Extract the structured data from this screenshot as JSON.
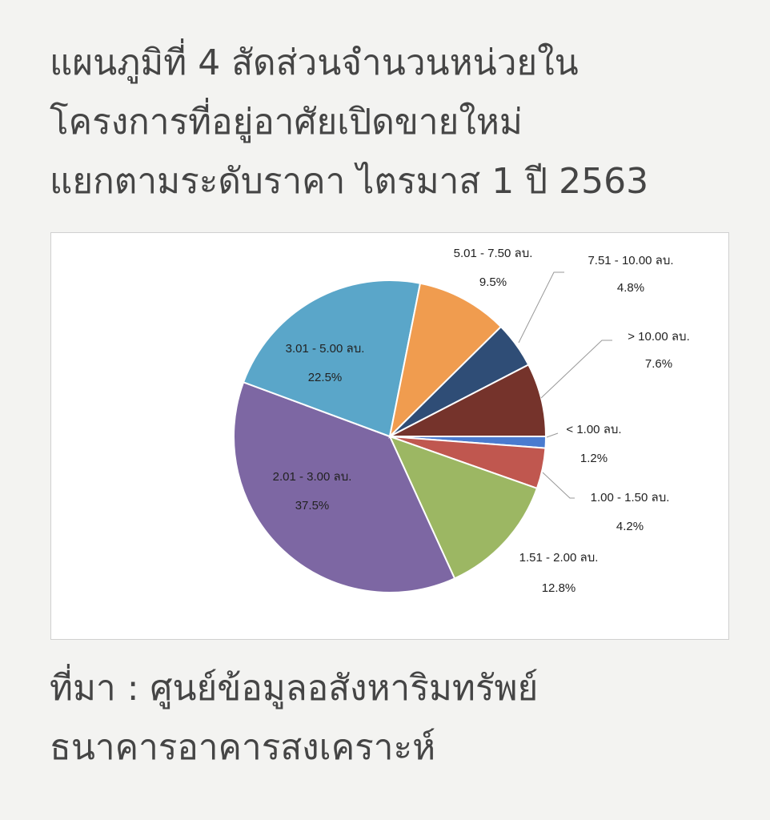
{
  "chart_data": {
    "type": "pie",
    "title_lines": [
      "แผนภูมิที่ 4 สัดส่วนจำนวนหน่วยใน",
      "โครงการที่อยู่อาศัยเปิดขายใหม่",
      "แยกตามระดับราคา ไตรมาส 1 ปี 2563"
    ],
    "categories": [
      "< 1.00 ลบ.",
      "1.00 - 1.50 ลบ.",
      "1.51 - 2.00 ลบ.",
      "2.01 - 3.00 ลบ.",
      "3.01 - 5.00 ลบ.",
      "5.01 - 7.50 ลบ.",
      "7.51 - 10.00 ลบ.",
      "> 10.00 ลบ."
    ],
    "values": [
      1.2,
      4.2,
      12.8,
      37.5,
      22.5,
      9.5,
      4.8,
      7.6
    ],
    "value_labels": [
      "1.2%",
      "4.2%",
      "12.8%",
      "37.5%",
      "22.5%",
      "9.5%",
      "4.8%",
      "7.6%"
    ],
    "colors": [
      "#4a7bcf",
      "#c0574f",
      "#9cb763",
      "#7d67a3",
      "#5aa6c9",
      "#f09c4f",
      "#2f4d76",
      "#75332b"
    ],
    "source_lines": [
      "ที่มา : ศูนย์ข้อมูลอสังหาริมทรัพย์",
      "ธนาคารอาคารสงเคราะห์"
    ]
  }
}
